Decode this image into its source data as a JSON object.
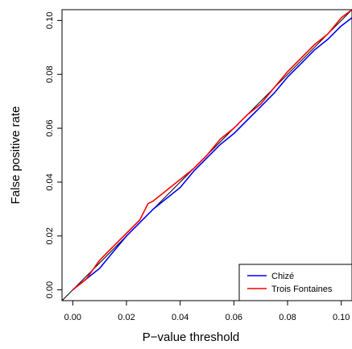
{
  "chart_data": {
    "type": "line",
    "title": "",
    "xlabel": "P−value threshold",
    "ylabel": "False positive rate",
    "xlim": [
      -0.004,
      0.104
    ],
    "ylim": [
      -0.004,
      0.104
    ],
    "x_ticks": [
      0.0,
      0.02,
      0.04,
      0.06,
      0.08,
      0.1
    ],
    "x_tick_labels": [
      "0.00",
      "0.02",
      "0.04",
      "0.06",
      "0.08",
      "0.10"
    ],
    "y_ticks": [
      0.0,
      0.02,
      0.04,
      0.06,
      0.08,
      0.1
    ],
    "y_tick_labels": [
      "0.00",
      "0.02",
      "0.04",
      "0.06",
      "0.08",
      "0.10"
    ],
    "grid": false,
    "legend_position": "bottom-right",
    "reference_line": {
      "x": [
        -0.004,
        0.104
      ],
      "y": [
        -0.004,
        0.104
      ],
      "color": "#000000"
    },
    "series": [
      {
        "name": "Chizé",
        "color": "#0000FF",
        "x": [
          0,
          0.005,
          0.01,
          0.015,
          0.02,
          0.025,
          0.03,
          0.035,
          0.04,
          0.045,
          0.05,
          0.055,
          0.06,
          0.065,
          0.07,
          0.075,
          0.08,
          0.085,
          0.09,
          0.095,
          0.1,
          0.104
        ],
        "y": [
          0,
          0.004,
          0.008,
          0.014,
          0.02,
          0.025,
          0.03,
          0.034,
          0.038,
          0.044,
          0.049,
          0.054,
          0.058,
          0.063,
          0.068,
          0.073,
          0.079,
          0.084,
          0.089,
          0.093,
          0.098,
          0.101
        ]
      },
      {
        "name": "Trois Fontaines",
        "color": "#FF0000",
        "x": [
          0,
          0.005,
          0.01,
          0.015,
          0.02,
          0.025,
          0.028,
          0.03,
          0.035,
          0.04,
          0.045,
          0.05,
          0.055,
          0.06,
          0.065,
          0.07,
          0.075,
          0.08,
          0.085,
          0.09,
          0.095,
          0.1,
          0.104
        ],
        "y": [
          0,
          0.004,
          0.011,
          0.016,
          0.021,
          0.026,
          0.032,
          0.033,
          0.037,
          0.041,
          0.045,
          0.05,
          0.056,
          0.06,
          0.065,
          0.069,
          0.075,
          0.081,
          0.086,
          0.091,
          0.095,
          0.101,
          0.104
        ]
      }
    ]
  }
}
